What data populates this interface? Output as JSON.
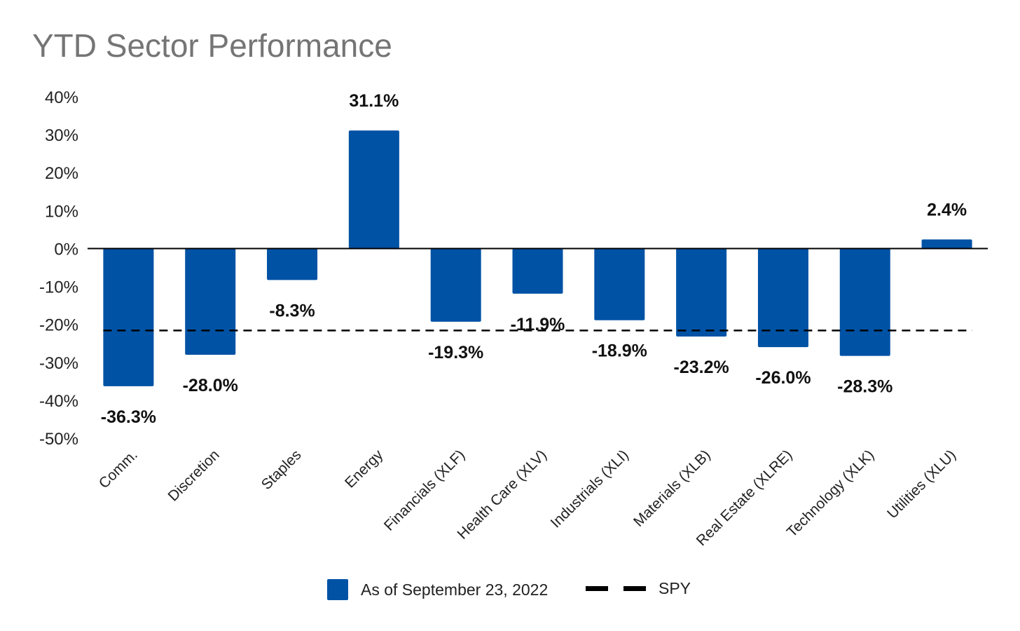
{
  "chart_data": {
    "type": "bar",
    "title": "YTD Sector Performance",
    "categories": [
      "Comm.",
      "Discretion",
      "Staples",
      "Energy",
      "Financials (XLF)",
      "Health Care (XLV)",
      "Industrials (XLI)",
      "Materials (XLB)",
      "Real Estate (XLRE)",
      "Technology (XLK)",
      "Utilities (XLU)"
    ],
    "series": [
      {
        "name": "As of September 23, 2022",
        "type": "bar",
        "color": "#0052A5",
        "values": [
          -36.3,
          -28.0,
          -8.3,
          31.1,
          -19.3,
          -11.9,
          -18.9,
          -23.2,
          -26.0,
          -28.3,
          2.4
        ],
        "labels": [
          "-36.3%",
          "-28.0%",
          "-8.3%",
          "31.1%",
          "-19.3%",
          "-11.9%",
          "-18.9%",
          "-23.2%",
          "-26.0%",
          "-28.3%",
          "2.4%"
        ]
      },
      {
        "name": "SPY",
        "type": "line",
        "style": "dashed",
        "color": "#000000",
        "value": -21.6
      }
    ],
    "y_ticks": [
      40,
      30,
      20,
      10,
      0,
      -10,
      -20,
      -30,
      -40,
      -50
    ],
    "y_tick_labels": [
      "40%",
      "30%",
      "20%",
      "10%",
      "0%",
      "-10%",
      "-20%",
      "-30%",
      "-40%",
      "-50%"
    ],
    "ylim": [
      -50,
      40
    ],
    "xlabel": "",
    "ylabel": "",
    "grid": false,
    "legend_position": "bottom"
  }
}
